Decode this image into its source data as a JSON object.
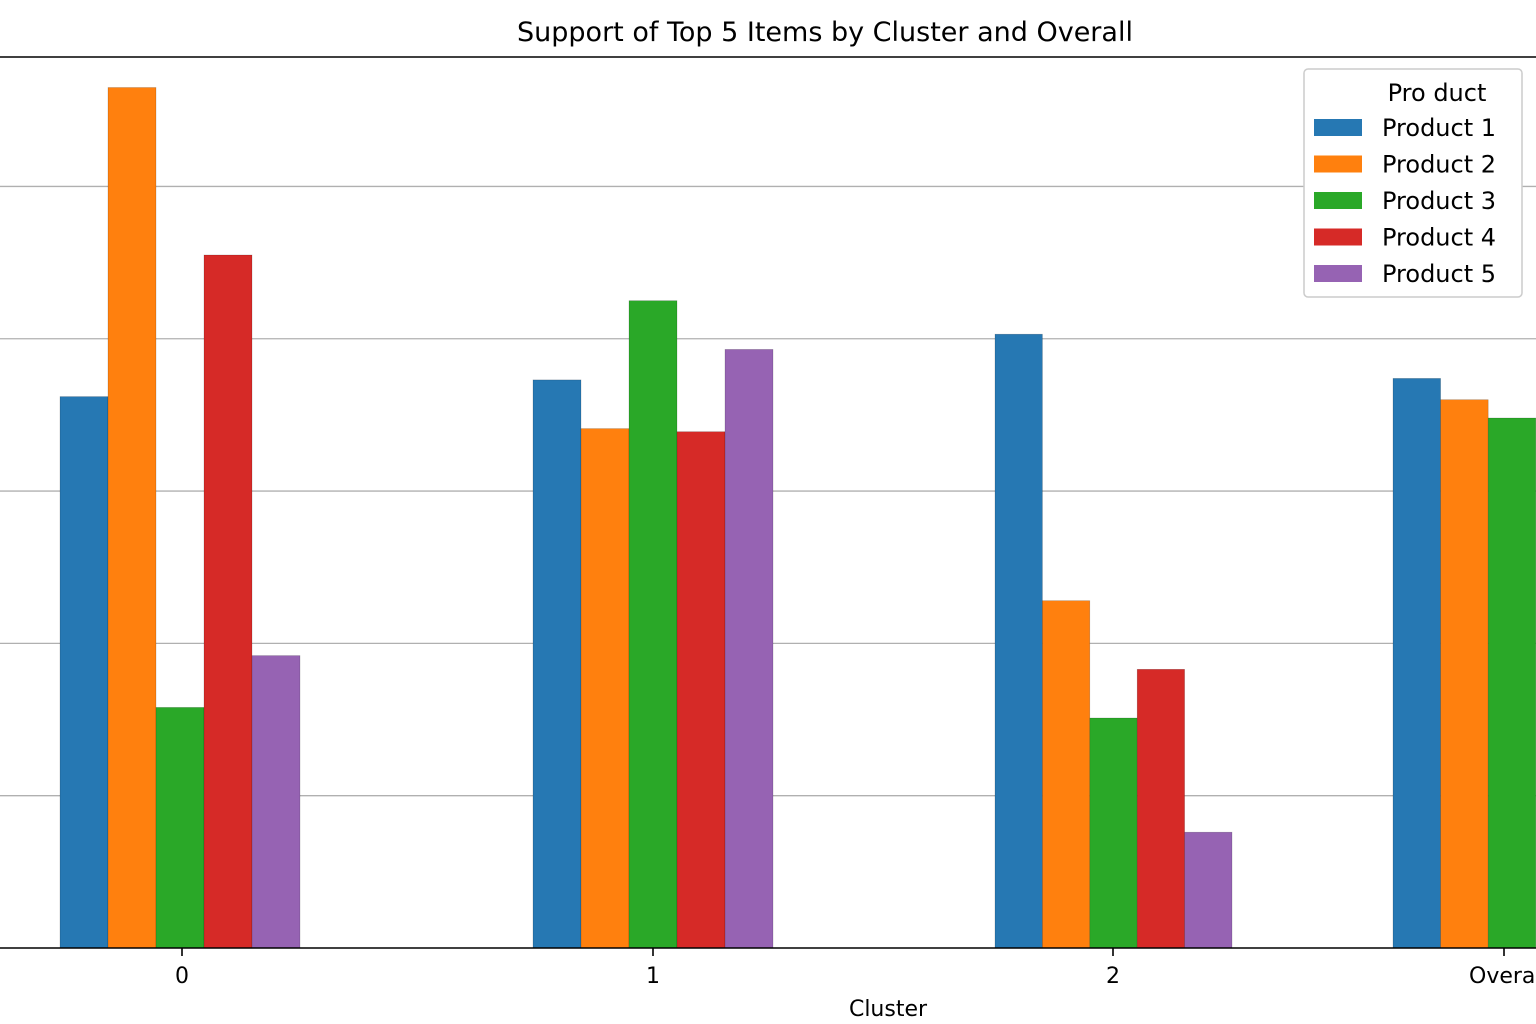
{
  "chart_data": {
    "type": "bar",
    "title": "Support of Top 5 Items by Cluster and Overall",
    "xlabel": "Cluster",
    "ylabel": "",
    "categories": [
      "0",
      "1",
      "2",
      "Overa"
    ],
    "ylim": [
      0,
      5.85
    ],
    "grid": true,
    "legend": {
      "title": "Pro duct",
      "placement": "top-right"
    },
    "series": [
      {
        "name": "Product 1",
        "color": "#2678b3",
        "values": [
          3.62,
          3.73,
          4.03,
          3.74
        ]
      },
      {
        "name": "Product 2",
        "color": "#ff800e",
        "values": [
          5.65,
          3.41,
          2.28,
          3.6
        ]
      },
      {
        "name": "Product 3",
        "color": "#2aa828",
        "values": [
          1.58,
          4.25,
          1.51,
          3.48
        ]
      },
      {
        "name": "Product 4",
        "color": "#d62a27",
        "values": [
          4.55,
          3.39,
          1.83,
          null
        ]
      },
      {
        "name": "Product 5",
        "color": "#9663b3",
        "values": [
          1.92,
          3.93,
          0.76,
          null
        ]
      }
    ]
  }
}
